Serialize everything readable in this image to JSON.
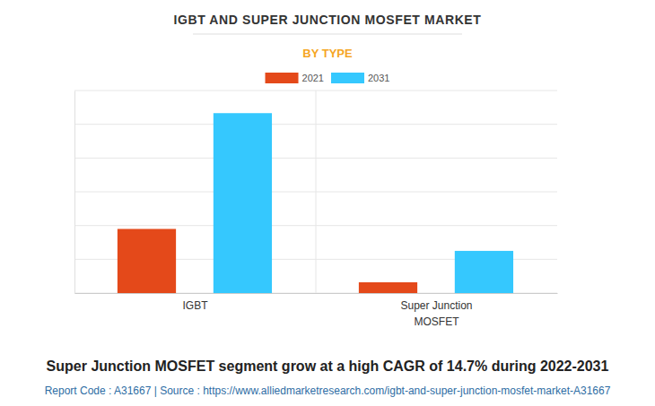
{
  "chart_data": {
    "type": "bar",
    "title": "IGBT AND SUPER JUNCTION MOSFET MARKET",
    "subtitle": "BY TYPE",
    "categories": [
      "IGBT",
      "Super Junction MOSFET"
    ],
    "series": [
      {
        "name": "2021",
        "color": "#e4491a",
        "values": [
          1.9,
          0.32
        ]
      },
      {
        "name": "2031",
        "color": "#35c8fe",
        "values": [
          5.33,
          1.25
        ]
      }
    ],
    "ylim": [
      0,
      6
    ],
    "yticks": [
      0,
      1,
      2,
      3,
      4,
      5,
      6
    ],
    "grid": true,
    "tick_labels": "x",
    "legend": "top",
    "annotations": [
      "Super Junction MOSFET segment grow at a high CAGR of 14.7% during 2022-2031",
      "Report Code : A31667 | Source : https://www.alliedmarketresearch.com/igbt-and-super-junction-mosfet-market-A31667"
    ]
  }
}
